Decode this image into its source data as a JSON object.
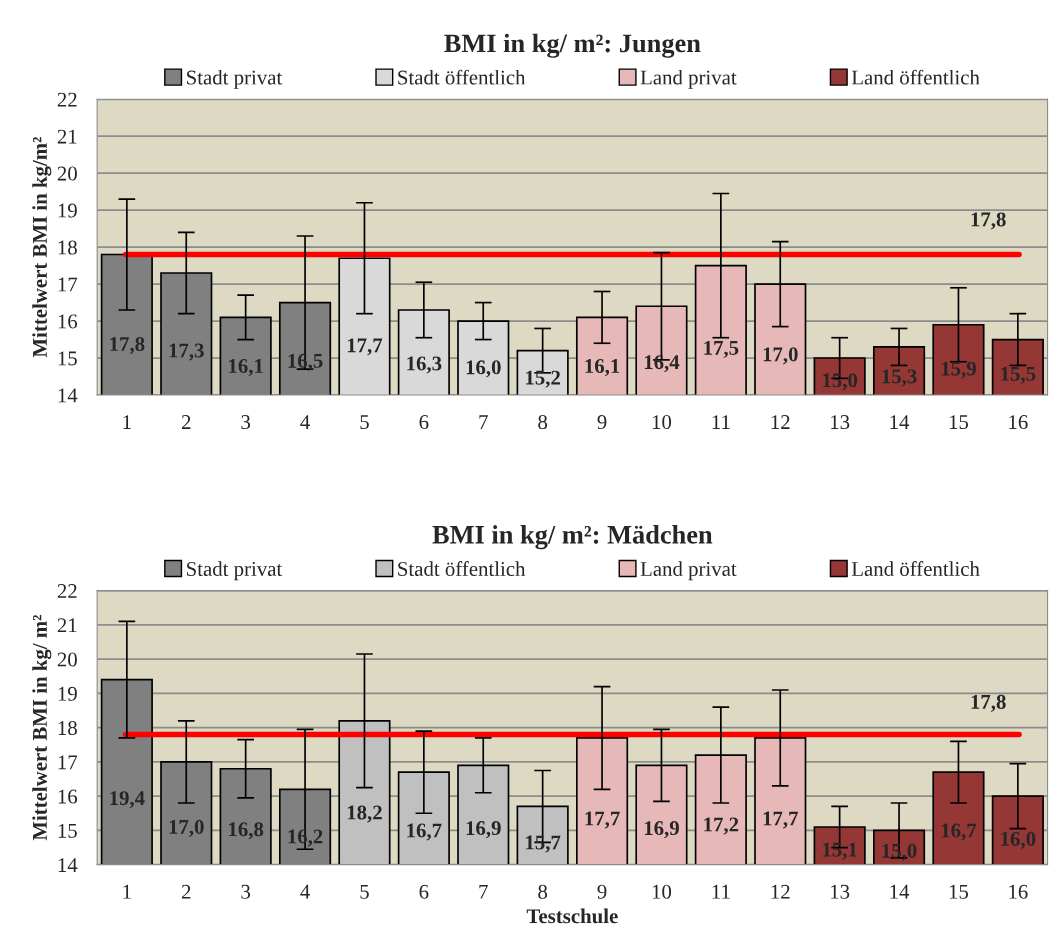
{
  "chart_data": [
    {
      "type": "bar",
      "title": "BMI in kg/ m²: Jungen",
      "ylabel": "Mittelwert BMI in kg/m²",
      "categories": [
        "1",
        "2",
        "3",
        "4",
        "5",
        "6",
        "7",
        "8",
        "9",
        "10",
        "11",
        "12",
        "13",
        "14",
        "15",
        "16"
      ],
      "ylim": [
        14,
        22
      ],
      "yticks": [
        14,
        15,
        16,
        17,
        18,
        19,
        20,
        21,
        22
      ],
      "grid": "y",
      "legend": "top",
      "series": [
        {
          "name": "Stadt privat",
          "color": "#808080",
          "values": [
            17.8,
            17.3,
            16.1,
            16.5,
            null,
            null,
            null,
            null,
            null,
            null,
            null,
            null,
            null,
            null,
            null,
            null
          ],
          "errors": [
            1.5,
            1.1,
            0.6,
            1.8,
            null,
            null,
            null,
            null,
            null,
            null,
            null,
            null,
            null,
            null,
            null,
            null
          ],
          "value_labels": [
            "17,8",
            "17,3",
            "16,1",
            "16,5",
            null,
            null,
            null,
            null,
            null,
            null,
            null,
            null,
            null,
            null,
            null,
            null
          ]
        },
        {
          "name": "Stadt öffentlich",
          "color": "#d9d9d9",
          "values": [
            null,
            null,
            null,
            null,
            17.7,
            16.3,
            16.0,
            15.2,
            null,
            null,
            null,
            null,
            null,
            null,
            null,
            null
          ],
          "errors": [
            null,
            null,
            null,
            null,
            1.5,
            0.75,
            0.5,
            0.6,
            null,
            null,
            null,
            null,
            null,
            null,
            null,
            null
          ],
          "value_labels": [
            null,
            null,
            null,
            null,
            "17,7",
            "16,3",
            "16,0",
            "15,2",
            null,
            null,
            null,
            null,
            null,
            null,
            null,
            null
          ]
        },
        {
          "name": "Land privat",
          "color": "#e6b9b8",
          "values": [
            null,
            null,
            null,
            null,
            null,
            null,
            null,
            null,
            16.1,
            16.4,
            17.5,
            17.0,
            null,
            null,
            null,
            null
          ],
          "errors": [
            null,
            null,
            null,
            null,
            null,
            null,
            null,
            null,
            0.7,
            1.45,
            1.95,
            1.15,
            null,
            null,
            null,
            null
          ],
          "value_labels": [
            null,
            null,
            null,
            null,
            null,
            null,
            null,
            null,
            "16,1",
            "16,4",
            "17,5",
            "17,0",
            null,
            null,
            null,
            null
          ]
        },
        {
          "name": "Land öffentlich",
          "color": "#953735",
          "values": [
            null,
            null,
            null,
            null,
            null,
            null,
            null,
            null,
            null,
            null,
            null,
            null,
            15.0,
            15.3,
            15.9,
            15.5
          ],
          "errors": [
            null,
            null,
            null,
            null,
            null,
            null,
            null,
            null,
            null,
            null,
            null,
            null,
            0.55,
            0.5,
            1.0,
            0.7
          ],
          "value_labels": [
            null,
            null,
            null,
            null,
            null,
            null,
            null,
            null,
            null,
            null,
            null,
            null,
            "15,0",
            "15,3",
            "15,9",
            "15,5"
          ]
        }
      ],
      "ref_lines": [
        {
          "axis": "y",
          "value": 17.8,
          "label": "17,8",
          "color": "#ff0000"
        }
      ]
    },
    {
      "type": "bar",
      "title": "BMI in kg/ m²: Mädchen",
      "ylabel": "Mittelwert BMI in kg/ m²",
      "xlabel": "Testschule",
      "categories": [
        "1",
        "2",
        "3",
        "4",
        "5",
        "6",
        "7",
        "8",
        "9",
        "10",
        "11",
        "12",
        "13",
        "14",
        "15",
        "16"
      ],
      "ylim": [
        14,
        22
      ],
      "yticks": [
        14,
        15,
        16,
        17,
        18,
        19,
        20,
        21,
        22
      ],
      "grid": "y",
      "legend": "top",
      "series": [
        {
          "name": "Stadt privat",
          "color": "#808080",
          "values": [
            19.4,
            17.0,
            16.8,
            16.2,
            null,
            null,
            null,
            null,
            null,
            null,
            null,
            null,
            null,
            null,
            null,
            null
          ],
          "errors": [
            1.7,
            1.2,
            0.85,
            1.75,
            null,
            null,
            null,
            null,
            null,
            null,
            null,
            null,
            null,
            null,
            null,
            null
          ],
          "value_labels": [
            "19,4",
            "17,0",
            "16,8",
            "16,2",
            null,
            null,
            null,
            null,
            null,
            null,
            null,
            null,
            null,
            null,
            null,
            null
          ]
        },
        {
          "name": "Stadt öffentlich",
          "color": "#c0c0c0",
          "values": [
            null,
            null,
            null,
            null,
            18.2,
            16.7,
            16.9,
            15.7,
            null,
            null,
            null,
            null,
            null,
            null,
            null,
            null
          ],
          "errors": [
            null,
            null,
            null,
            null,
            1.95,
            1.2,
            0.8,
            1.05,
            null,
            null,
            null,
            null,
            null,
            null,
            null,
            null
          ],
          "value_labels": [
            null,
            null,
            null,
            null,
            "18,2",
            "16,7",
            "16,9",
            "15,7",
            null,
            null,
            null,
            null,
            null,
            null,
            null,
            null
          ]
        },
        {
          "name": "Land privat",
          "color": "#e6b9b8",
          "values": [
            null,
            null,
            null,
            null,
            null,
            null,
            null,
            null,
            17.7,
            16.9,
            17.2,
            17.7,
            null,
            null,
            null,
            null
          ],
          "errors": [
            null,
            null,
            null,
            null,
            null,
            null,
            null,
            null,
            1.5,
            1.05,
            1.4,
            1.4,
            null,
            null,
            null,
            null
          ],
          "value_labels": [
            null,
            null,
            null,
            null,
            null,
            null,
            null,
            null,
            "17,7",
            "16,9",
            "17,2",
            "17,7",
            null,
            null,
            null,
            null
          ]
        },
        {
          "name": "Land öffentlich",
          "color": "#953735",
          "values": [
            null,
            null,
            null,
            null,
            null,
            null,
            null,
            null,
            null,
            null,
            null,
            null,
            15.1,
            15.0,
            16.7,
            16.0
          ],
          "errors": [
            null,
            null,
            null,
            null,
            null,
            null,
            null,
            null,
            null,
            null,
            null,
            null,
            0.6,
            0.8,
            0.9,
            0.95
          ],
          "value_labels": [
            null,
            null,
            null,
            null,
            null,
            null,
            null,
            null,
            null,
            null,
            null,
            null,
            "15,1",
            "15,0",
            "16,7",
            "16,0"
          ]
        }
      ],
      "ref_lines": [
        {
          "axis": "y",
          "value": 17.8,
          "label": "17,8",
          "color": "#ff0000"
        }
      ]
    }
  ]
}
